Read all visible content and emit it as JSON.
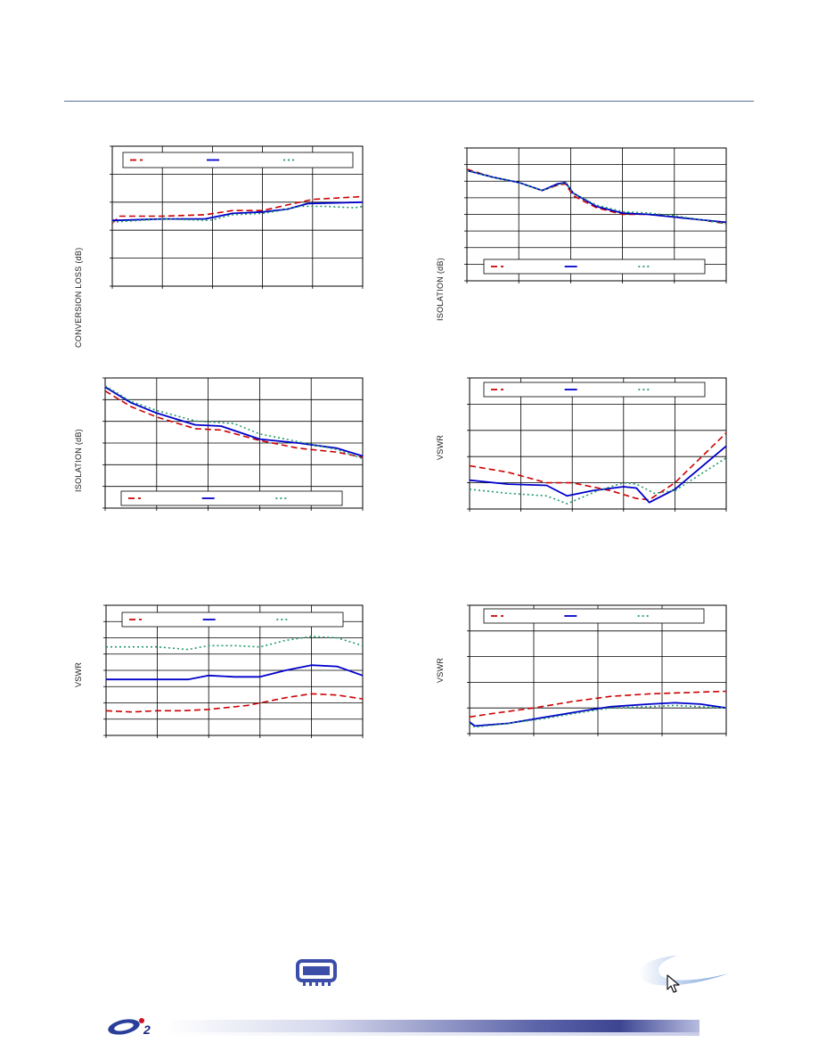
{
  "page": {
    "logo_text": "2"
  },
  "colors": {
    "series1": "#cc0000",
    "series2": "#0000cc",
    "series3": "#229966",
    "rule": "#5a6e9a"
  },
  "icons": [
    "chip-icon",
    "cursor-arrow-icon",
    "swoosh-logo",
    "company-logo"
  ],
  "chart_data": [
    {
      "type": "line",
      "ylabel": "CONVERSION LOSS (dB)",
      "legend": "top",
      "grid": true,
      "xdiv": 5,
      "ydiv": 5,
      "ylim": [
        0,
        1
      ],
      "series": [
        {
          "style": "dashed",
          "values": [
            [
              0,
              0.45
            ],
            [
              0.03,
              0.5
            ],
            [
              0.2,
              0.5
            ],
            [
              0.37,
              0.51
            ],
            [
              0.48,
              0.54
            ],
            [
              0.6,
              0.54
            ],
            [
              0.7,
              0.58
            ],
            [
              0.8,
              0.62
            ],
            [
              1,
              0.64
            ]
          ]
        },
        {
          "style": "solid",
          "values": [
            [
              0,
              0.47
            ],
            [
              0.02,
              0.47
            ],
            [
              0.2,
              0.48
            ],
            [
              0.37,
              0.48
            ],
            [
              0.48,
              0.52
            ],
            [
              0.6,
              0.53
            ],
            [
              0.7,
              0.55
            ],
            [
              0.78,
              0.59
            ],
            [
              1,
              0.6
            ]
          ]
        },
        {
          "style": "dotted",
          "values": [
            [
              0,
              0.46
            ],
            [
              0.02,
              0.46
            ],
            [
              0.2,
              0.48
            ],
            [
              0.39,
              0.47
            ],
            [
              0.48,
              0.51
            ],
            [
              0.6,
              0.52
            ],
            [
              0.67,
              0.54
            ],
            [
              0.75,
              0.57
            ],
            [
              0.85,
              0.57
            ],
            [
              0.97,
              0.56
            ],
            [
              1,
              0.57
            ]
          ]
        }
      ]
    },
    {
      "type": "line",
      "ylabel": "ISOLATION (dB)",
      "legend": "bottom",
      "grid": true,
      "xdiv": 5,
      "ydiv": 8,
      "ylim": [
        0,
        1
      ],
      "series": [
        {
          "style": "dashed",
          "values": [
            [
              0,
              0.84
            ],
            [
              0.1,
              0.78
            ],
            [
              0.2,
              0.74
            ],
            [
              0.29,
              0.68
            ],
            [
              0.35,
              0.72
            ],
            [
              0.38,
              0.73
            ],
            [
              0.41,
              0.64
            ],
            [
              0.5,
              0.55
            ],
            [
              0.6,
              0.5
            ],
            [
              0.7,
              0.5
            ],
            [
              0.8,
              0.48
            ],
            [
              0.9,
              0.46
            ],
            [
              1,
              0.43
            ]
          ]
        },
        {
          "style": "solid",
          "values": [
            [
              0,
              0.83
            ],
            [
              0.1,
              0.78
            ],
            [
              0.2,
              0.74
            ],
            [
              0.29,
              0.68
            ],
            [
              0.35,
              0.73
            ],
            [
              0.38,
              0.74
            ],
            [
              0.41,
              0.66
            ],
            [
              0.5,
              0.56
            ],
            [
              0.6,
              0.51
            ],
            [
              0.7,
              0.5
            ],
            [
              0.8,
              0.48
            ],
            [
              0.9,
              0.46
            ],
            [
              1,
              0.44
            ]
          ]
        },
        {
          "style": "dotted",
          "values": [
            [
              0,
              0.83
            ],
            [
              0.1,
              0.78
            ],
            [
              0.2,
              0.74
            ],
            [
              0.29,
              0.68
            ],
            [
              0.35,
              0.72
            ],
            [
              0.38,
              0.74
            ],
            [
              0.41,
              0.66
            ],
            [
              0.5,
              0.57
            ],
            [
              0.6,
              0.52
            ],
            [
              0.7,
              0.51
            ],
            [
              0.8,
              0.49
            ],
            [
              0.9,
              0.46
            ],
            [
              1,
              0.43
            ]
          ]
        }
      ]
    },
    {
      "type": "line",
      "ylabel": "ISOLATION (dB)",
      "legend": "bottom",
      "grid": true,
      "xdiv": 5,
      "ydiv": 6,
      "ylim": [
        0,
        1
      ],
      "series": [
        {
          "style": "dashed",
          "values": [
            [
              0,
              0.9
            ],
            [
              0.1,
              0.78
            ],
            [
              0.2,
              0.7
            ],
            [
              0.35,
              0.61
            ],
            [
              0.45,
              0.6
            ],
            [
              0.6,
              0.52
            ],
            [
              0.75,
              0.46
            ],
            [
              0.9,
              0.43
            ],
            [
              1,
              0.39
            ]
          ]
        },
        {
          "style": "solid",
          "values": [
            [
              0,
              0.93
            ],
            [
              0.1,
              0.81
            ],
            [
              0.2,
              0.73
            ],
            [
              0.35,
              0.64
            ],
            [
              0.45,
              0.63
            ],
            [
              0.6,
              0.53
            ],
            [
              0.75,
              0.5
            ],
            [
              0.9,
              0.46
            ],
            [
              1,
              0.4
            ]
          ]
        },
        {
          "style": "dotted",
          "values": [
            [
              0,
              0.94
            ],
            [
              0.1,
              0.82
            ],
            [
              0.2,
              0.75
            ],
            [
              0.35,
              0.67
            ],
            [
              0.5,
              0.65
            ],
            [
              0.6,
              0.57
            ],
            [
              0.75,
              0.51
            ],
            [
              0.9,
              0.45
            ],
            [
              1,
              0.38
            ]
          ]
        }
      ]
    },
    {
      "type": "line",
      "ylabel": "VSWR",
      "legend": "top",
      "grid": true,
      "xdiv": 5,
      "ydiv": 5,
      "ylim": [
        0,
        1
      ],
      "series": [
        {
          "style": "dashed",
          "values": [
            [
              0,
              0.33
            ],
            [
              0.15,
              0.28
            ],
            [
              0.3,
              0.2
            ],
            [
              0.4,
              0.2
            ],
            [
              0.55,
              0.14
            ],
            [
              0.65,
              0.08
            ],
            [
              0.7,
              0.07
            ],
            [
              0.8,
              0.2
            ],
            [
              1,
              0.58
            ]
          ]
        },
        {
          "style": "solid",
          "values": [
            [
              0,
              0.22
            ],
            [
              0.15,
              0.19
            ],
            [
              0.3,
              0.18
            ],
            [
              0.38,
              0.1
            ],
            [
              0.48,
              0.14
            ],
            [
              0.6,
              0.17
            ],
            [
              0.65,
              0.16
            ],
            [
              0.7,
              0.05
            ],
            [
              0.8,
              0.15
            ],
            [
              1,
              0.48
            ]
          ]
        },
        {
          "style": "dotted",
          "values": [
            [
              0,
              0.15
            ],
            [
              0.15,
              0.12
            ],
            [
              0.3,
              0.1
            ],
            [
              0.38,
              0.04
            ],
            [
              0.5,
              0.14
            ],
            [
              0.6,
              0.2
            ],
            [
              0.65,
              0.19
            ],
            [
              0.72,
              0.12
            ],
            [
              0.8,
              0.14
            ],
            [
              1,
              0.39
            ]
          ]
        }
      ]
    },
    {
      "type": "line",
      "ylabel": "VSWR",
      "legend": "top",
      "grid": true,
      "xdiv": 5,
      "ydiv": 8,
      "ylim": [
        0,
        1
      ],
      "series": [
        {
          "style": "dashed",
          "values": [
            [
              0,
              0.19
            ],
            [
              0.1,
              0.18
            ],
            [
              0.2,
              0.19
            ],
            [
              0.3,
              0.19
            ],
            [
              0.4,
              0.2
            ],
            [
              0.55,
              0.23
            ],
            [
              0.7,
              0.29
            ],
            [
              0.8,
              0.32
            ],
            [
              0.9,
              0.31
            ],
            [
              1,
              0.28
            ]
          ]
        },
        {
          "style": "solid",
          "values": [
            [
              0,
              0.43
            ],
            [
              0.1,
              0.43
            ],
            [
              0.2,
              0.43
            ],
            [
              0.32,
              0.43
            ],
            [
              0.4,
              0.46
            ],
            [
              0.5,
              0.45
            ],
            [
              0.6,
              0.45
            ],
            [
              0.7,
              0.5
            ],
            [
              0.8,
              0.54
            ],
            [
              0.9,
              0.53
            ],
            [
              1,
              0.46
            ]
          ]
        },
        {
          "style": "dotted",
          "values": [
            [
              0,
              0.68
            ],
            [
              0.1,
              0.68
            ],
            [
              0.2,
              0.68
            ],
            [
              0.32,
              0.66
            ],
            [
              0.4,
              0.69
            ],
            [
              0.5,
              0.69
            ],
            [
              0.6,
              0.68
            ],
            [
              0.7,
              0.73
            ],
            [
              0.8,
              0.76
            ],
            [
              0.9,
              0.75
            ],
            [
              1,
              0.69
            ]
          ]
        }
      ]
    },
    {
      "type": "line",
      "ylabel": "VSWR",
      "legend": "top",
      "grid": true,
      "xdiv": 4,
      "ydiv": 5,
      "ylim": [
        0,
        1
      ],
      "series": [
        {
          "style": "dashed",
          "values": [
            [
              0,
              0.13
            ],
            [
              0.1,
              0.16
            ],
            [
              0.25,
              0.2
            ],
            [
              0.4,
              0.25
            ],
            [
              0.55,
              0.29
            ],
            [
              0.7,
              0.31
            ],
            [
              0.85,
              0.32
            ],
            [
              1,
              0.33
            ]
          ]
        },
        {
          "style": "solid",
          "values": [
            [
              0,
              0.09
            ],
            [
              0.02,
              0.06
            ],
            [
              0.15,
              0.08
            ],
            [
              0.3,
              0.13
            ],
            [
              0.45,
              0.18
            ],
            [
              0.55,
              0.21
            ],
            [
              0.7,
              0.23
            ],
            [
              0.8,
              0.24
            ],
            [
              0.9,
              0.23
            ],
            [
              1,
              0.2
            ]
          ]
        },
        {
          "style": "dotted",
          "values": [
            [
              0,
              0.08
            ],
            [
              0.02,
              0.05
            ],
            [
              0.15,
              0.08
            ],
            [
              0.3,
              0.12
            ],
            [
              0.45,
              0.17
            ],
            [
              0.55,
              0.2
            ],
            [
              0.7,
              0.21
            ],
            [
              0.8,
              0.22
            ],
            [
              0.9,
              0.21
            ],
            [
              1,
              0.2
            ]
          ]
        }
      ]
    }
  ]
}
